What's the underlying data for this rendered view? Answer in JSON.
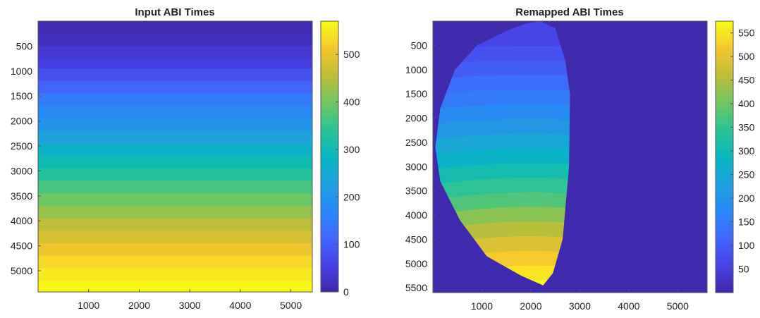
{
  "chart_data": [
    {
      "type": "heatmap",
      "title": "Input ABI Times",
      "xlabel": "",
      "ylabel": "",
      "xticks": [
        1000,
        2000,
        3000,
        4000,
        5000
      ],
      "yticks": [
        500,
        1000,
        1500,
        2000,
        2500,
        3000,
        3500,
        4000,
        4500,
        5000
      ],
      "xlim": [
        0,
        5424
      ],
      "ylim": [
        5424,
        0
      ],
      "y_direction": "reversed (increasing downward)",
      "colormap": "parula",
      "clim": [
        0,
        570
      ],
      "colorbar_ticks": [
        0,
        100,
        200,
        300,
        400,
        500
      ],
      "row_bands": [
        {
          "y_end": 250,
          "value": 10
        },
        {
          "y_end": 500,
          "value": 20
        },
        {
          "y_end": 750,
          "value": 35
        },
        {
          "y_end": 950,
          "value": 50
        },
        {
          "y_end": 1200,
          "value": 80
        },
        {
          "y_end": 1450,
          "value": 110
        },
        {
          "y_end": 1700,
          "value": 150
        },
        {
          "y_end": 1950,
          "value": 175
        },
        {
          "y_end": 2200,
          "value": 200
        },
        {
          "y_end": 2450,
          "value": 230
        },
        {
          "y_end": 2700,
          "value": 265
        },
        {
          "y_end": 2950,
          "value": 300
        },
        {
          "y_end": 3200,
          "value": 330
        },
        {
          "y_end": 3450,
          "value": 365
        },
        {
          "y_end": 3700,
          "value": 395
        },
        {
          "y_end": 3950,
          "value": 425
        },
        {
          "y_end": 4200,
          "value": 455
        },
        {
          "y_end": 4450,
          "value": 480
        },
        {
          "y_end": 4700,
          "value": 505
        },
        {
          "y_end": 4950,
          "value": 530
        },
        {
          "y_end": 5200,
          "value": 550
        },
        {
          "y_end": 5424,
          "value": 565
        }
      ]
    },
    {
      "type": "heatmap",
      "title": "Remapped ABI Times",
      "xlabel": "",
      "ylabel": "",
      "xticks": [
        1000,
        2000,
        3000,
        4000,
        5000
      ],
      "yticks": [
        500,
        1000,
        1500,
        2000,
        2500,
        3000,
        3500,
        4000,
        4500,
        5000,
        5500
      ],
      "xlim": [
        0,
        5600
      ],
      "ylim": [
        5600,
        0
      ],
      "y_direction": "reversed (increasing downward)",
      "colormap": "parula",
      "clim": [
        0,
        575
      ],
      "colorbar_ticks": [
        50,
        100,
        150,
        200,
        250,
        300,
        350,
        400,
        450,
        500,
        550
      ],
      "background_value": 5,
      "disk_boundary": [
        [
          2200,
          0
        ],
        [
          2500,
          150
        ],
        [
          2700,
          800
        ],
        [
          2800,
          1500
        ],
        [
          2780,
          3000
        ],
        [
          2650,
          4500
        ],
        [
          2450,
          5200
        ],
        [
          2250,
          5450
        ],
        [
          1800,
          5250
        ],
        [
          1100,
          4850
        ],
        [
          550,
          4100
        ],
        [
          150,
          3300
        ],
        [
          50,
          2600
        ],
        [
          150,
          1800
        ],
        [
          450,
          1000
        ],
        [
          900,
          500
        ],
        [
          1500,
          200
        ],
        [
          1900,
          50
        ]
      ],
      "disk_bands": [
        {
          "y_end": 500,
          "value": 60
        },
        {
          "y_end": 800,
          "value": 80
        },
        {
          "y_end": 1100,
          "value": 100
        },
        {
          "y_end": 1400,
          "value": 125
        },
        {
          "y_end": 1700,
          "value": 150
        },
        {
          "y_end": 2000,
          "value": 180
        },
        {
          "y_end": 2300,
          "value": 210
        },
        {
          "y_end": 2600,
          "value": 245
        },
        {
          "y_end": 2900,
          "value": 275
        },
        {
          "y_end": 3200,
          "value": 310
        },
        {
          "y_end": 3500,
          "value": 345
        },
        {
          "y_end": 3800,
          "value": 375
        },
        {
          "y_end": 4100,
          "value": 420
        },
        {
          "y_end": 4400,
          "value": 455
        },
        {
          "y_end": 4700,
          "value": 490
        },
        {
          "y_end": 5000,
          "value": 520
        },
        {
          "y_end": 5300,
          "value": 550
        },
        {
          "y_end": 5600,
          "value": 570
        }
      ]
    }
  ]
}
